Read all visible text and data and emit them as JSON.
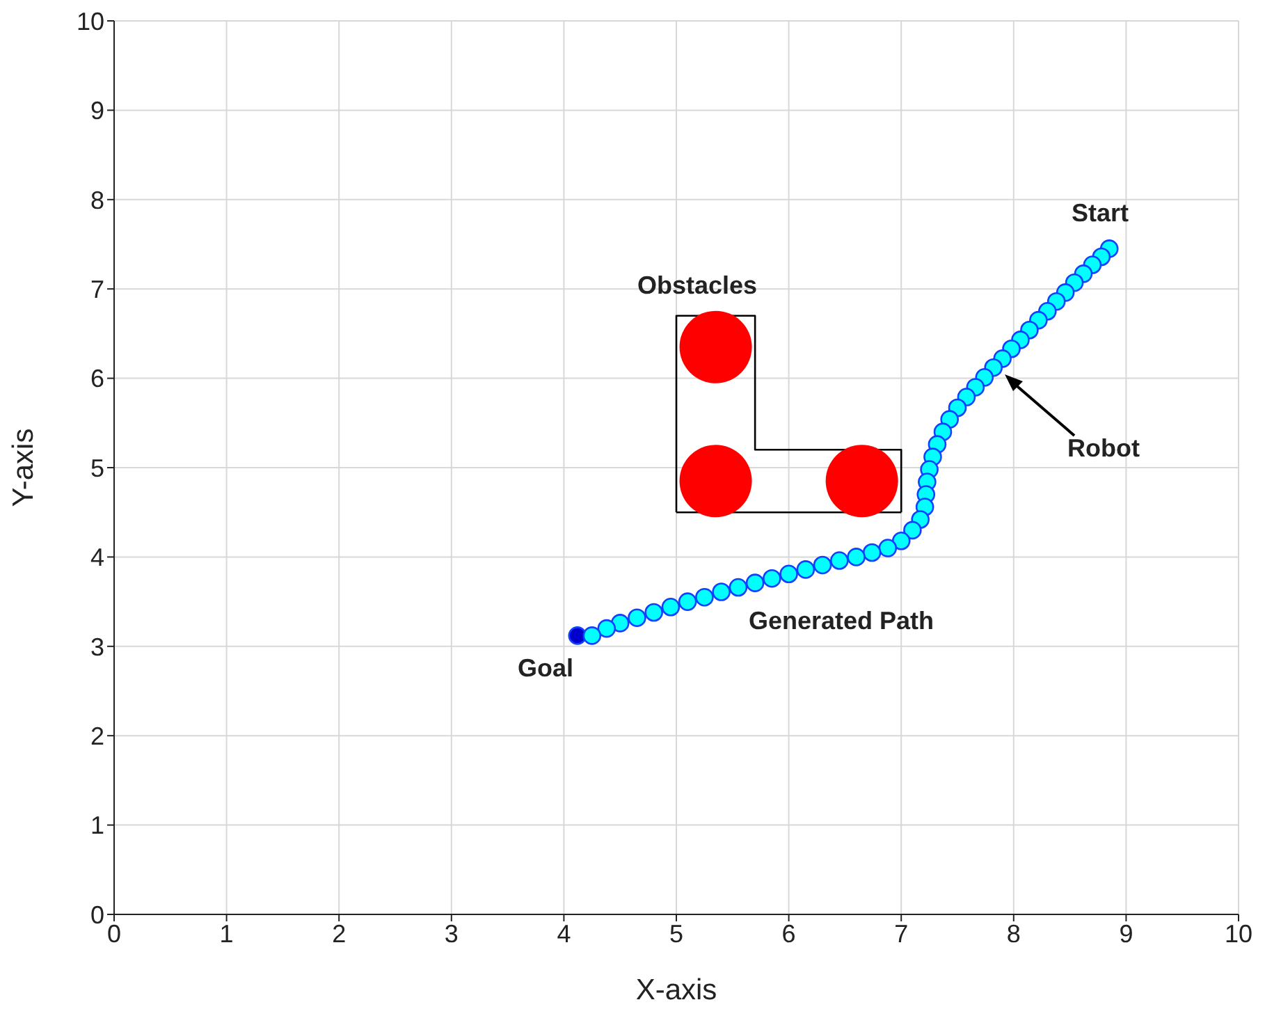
{
  "chart_data": {
    "type": "scatter",
    "xlabel": "X-axis",
    "ylabel": "Y-axis",
    "xlim": [
      0,
      10
    ],
    "ylim": [
      0,
      10
    ],
    "xticks": [
      0,
      1,
      2,
      3,
      4,
      5,
      6,
      7,
      8,
      9,
      10
    ],
    "yticks": [
      0,
      1,
      2,
      3,
      4,
      5,
      6,
      7,
      8,
      9,
      10
    ],
    "grid": true,
    "marker": "circle",
    "series": [
      {
        "type": "line",
        "marker": "none",
        "color": "#000000",
        "x": [
          5,
          5,
          5.7,
          5.7,
          7,
          7
        ],
        "values": [
          4.5,
          6.7,
          6.7,
          5.2,
          5.2,
          4.5
        ]
      },
      {
        "type": "line",
        "marker": "none",
        "color": "#000000",
        "x": [
          5,
          7
        ],
        "values": [
          4.5,
          4.5
        ]
      },
      {
        "type": "bubble",
        "color": "#ff0000",
        "x": [
          5.35,
          5.35,
          6.65
        ],
        "values": [
          6.35,
          4.85,
          4.85
        ],
        "sizes": [
          1,
          1,
          1
        ]
      },
      {
        "color": "#0000cc",
        "x": [
          4.12
        ],
        "values": [
          3.12
        ]
      },
      {
        "color": "#00ffff",
        "x": [
          8.85,
          8.78,
          8.7,
          8.62,
          8.54,
          8.46,
          8.38,
          8.3,
          8.22,
          8.14,
          8.06,
          7.98,
          7.9,
          7.82,
          7.74,
          7.66,
          7.58,
          7.5,
          7.43,
          7.37,
          7.32,
          7.28,
          7.25,
          7.23,
          7.22,
          7.21,
          7.17,
          7.1,
          7.0,
          6.88,
          6.74,
          6.6,
          6.45,
          6.3,
          6.15,
          6.0,
          5.85,
          5.7,
          5.55,
          5.4,
          5.25,
          5.1,
          4.95,
          4.8,
          4.65,
          4.5,
          4.38,
          4.25
        ],
        "values": [
          7.45,
          7.36,
          7.27,
          7.17,
          7.07,
          6.96,
          6.86,
          6.75,
          6.65,
          6.54,
          6.43,
          6.33,
          6.22,
          6.12,
          6.01,
          5.9,
          5.79,
          5.67,
          5.54,
          5.4,
          5.26,
          5.12,
          4.98,
          4.84,
          4.7,
          4.56,
          4.42,
          4.3,
          4.18,
          4.1,
          4.05,
          4.0,
          3.96,
          3.91,
          3.86,
          3.81,
          3.76,
          3.71,
          3.66,
          3.61,
          3.55,
          3.5,
          3.44,
          3.38,
          3.32,
          3.26,
          3.2,
          3.12
        ]
      }
    ],
    "annotations": [
      "Start",
      "Obstacles",
      "Robot",
      "Generated Path",
      "Goal"
    ]
  }
}
